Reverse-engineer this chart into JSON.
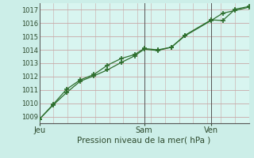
{
  "background_color": "#cceee8",
  "plot_bg_color": "#d8f5f0",
  "grid_color_h": "#c8a8a8",
  "grid_color_v": "#c8a8a8",
  "line_color": "#2d6e2d",
  "marker_color": "#2d6e2d",
  "xlabel": "Pression niveau de la mer( hPa )",
  "ylim": [
    1008.5,
    1017.5
  ],
  "yticks": [
    1009,
    1010,
    1011,
    1012,
    1013,
    1014,
    1015,
    1016,
    1017
  ],
  "xtick_labels": [
    "Jeu",
    "Sam",
    "Ven"
  ],
  "xtick_positions": [
    0.0,
    0.5,
    0.82
  ],
  "line1_x": [
    0.0,
    0.065,
    0.13,
    0.195,
    0.26,
    0.325,
    0.39,
    0.455,
    0.5,
    0.565,
    0.63,
    0.695,
    0.82,
    0.875,
    0.935,
    1.0
  ],
  "line1_y": [
    1008.8,
    1009.85,
    1010.8,
    1011.65,
    1012.05,
    1012.5,
    1013.05,
    1013.55,
    1014.05,
    1013.95,
    1014.2,
    1015.05,
    1016.2,
    1016.75,
    1016.95,
    1017.2
  ],
  "line2_x": [
    0.0,
    0.065,
    0.13,
    0.195,
    0.26,
    0.325,
    0.39,
    0.455,
    0.5,
    0.565,
    0.63,
    0.695,
    0.82,
    0.875,
    0.935,
    1.0
  ],
  "line2_y": [
    1008.8,
    1009.9,
    1011.05,
    1011.75,
    1012.15,
    1012.85,
    1013.35,
    1013.65,
    1014.1,
    1014.0,
    1014.2,
    1015.1,
    1016.25,
    1016.2,
    1017.05,
    1017.25
  ],
  "vline_positions": [
    0.0,
    0.5,
    0.82
  ],
  "vline_color": "#555555",
  "spine_color": "#555555"
}
